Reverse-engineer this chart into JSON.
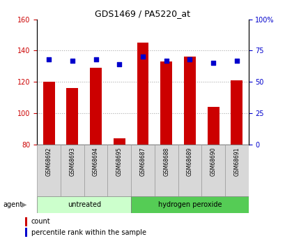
{
  "title": "GDS1469 / PA5220_at",
  "samples": [
    "GSM68692",
    "GSM68693",
    "GSM68694",
    "GSM68695",
    "GSM68687",
    "GSM68688",
    "GSM68689",
    "GSM68690",
    "GSM68691"
  ],
  "counts": [
    120,
    116,
    129,
    84,
    145,
    133,
    136,
    104,
    121
  ],
  "percentile_ranks": [
    68,
    67,
    68,
    64,
    70,
    67,
    68,
    65,
    67
  ],
  "groups": [
    {
      "label": "untreated",
      "start": 0,
      "end": 4
    },
    {
      "label": "hydrogen peroxide",
      "start": 4,
      "end": 9
    }
  ],
  "bar_color": "#cc0000",
  "dot_color": "#0000cc",
  "left_ylim": [
    80,
    160
  ],
  "left_yticks": [
    80,
    100,
    120,
    140,
    160
  ],
  "right_ylim": [
    0,
    100
  ],
  "right_yticks": [
    0,
    25,
    50,
    75,
    100
  ],
  "right_yticklabels": [
    "0",
    "25",
    "50",
    "75",
    "100%"
  ],
  "grid_yticks": [
    100,
    120,
    140
  ],
  "grid_color": "#aaaaaa",
  "bg_color": "#ffffff",
  "plot_bg": "#ffffff",
  "bar_width": 0.5,
  "group_bg_untreated": "#ccffcc",
  "group_bg_peroxide": "#55cc55",
  "tick_label_color_left": "#cc0000",
  "tick_label_color_right": "#0000cc",
  "legend_items": [
    {
      "label": "count",
      "color": "#cc0000"
    },
    {
      "label": "percentile rank within the sample",
      "color": "#0000cc"
    }
  ],
  "agent_label": "agent",
  "figsize": [
    4.1,
    3.45
  ],
  "dpi": 100
}
